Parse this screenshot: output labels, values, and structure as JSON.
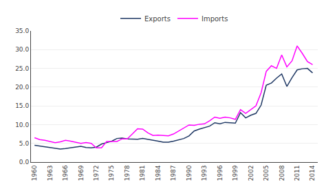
{
  "chart_data": {
    "type": "line",
    "x": [
      1960,
      1961,
      1962,
      1963,
      1964,
      1965,
      1966,
      1967,
      1968,
      1969,
      1970,
      1971,
      1972,
      1973,
      1974,
      1975,
      1976,
      1977,
      1978,
      1979,
      1980,
      1981,
      1982,
      1983,
      1984,
      1985,
      1986,
      1987,
      1988,
      1989,
      1990,
      1991,
      1992,
      1993,
      1994,
      1995,
      1996,
      1997,
      1998,
      1999,
      2000,
      2001,
      2002,
      2003,
      2004,
      2005,
      2006,
      2007,
      2008,
      2009,
      2010,
      2011,
      2012,
      2013,
      2014
    ],
    "series": [
      {
        "name": "Exports",
        "color": "#1F3864",
        "values": [
          4.5,
          4.3,
          4.1,
          3.8,
          3.6,
          3.5,
          3.6,
          3.8,
          4.0,
          4.2,
          3.9,
          3.8,
          4.0,
          4.8,
          5.2,
          5.6,
          6.3,
          6.4,
          6.2,
          6.2,
          6.1,
          6.3,
          6.1,
          5.8,
          5.6,
          5.3,
          5.3,
          5.6,
          5.9,
          6.3,
          7.0,
          8.3,
          8.8,
          9.2,
          9.6,
          10.5,
          10.2,
          10.6,
          10.5,
          10.4,
          13.2,
          11.8,
          12.5,
          13.0,
          15.2,
          20.5,
          21.1,
          22.4,
          23.5,
          20.2,
          22.5,
          24.6,
          24.9,
          25.0,
          23.8
        ]
      },
      {
        "name": "Imports",
        "color": "#FF00FF",
        "values": [
          6.5,
          6.0,
          5.8,
          5.5,
          5.2,
          5.4,
          5.8,
          5.6,
          5.3,
          5.0,
          5.2,
          5.0,
          3.8,
          3.8,
          5.5,
          5.5,
          5.5,
          6.2,
          6.2,
          7.5,
          8.9,
          8.8,
          7.8,
          7.1,
          7.2,
          7.1,
          7.0,
          7.5,
          8.3,
          9.2,
          9.9,
          9.8,
          10.1,
          10.2,
          11.0,
          12.0,
          11.7,
          12.0,
          11.8,
          11.4,
          14.0,
          13.0,
          14.0,
          15.0,
          18.5,
          24.2,
          25.7,
          25.0,
          28.6,
          25.4,
          27.0,
          31.0,
          29.0,
          26.8,
          26.0
        ]
      }
    ],
    "xlim": [
      1959.3,
      2015.0
    ],
    "xticks": [
      1960,
      1963,
      1966,
      1969,
      1972,
      1975,
      1978,
      1981,
      1984,
      1987,
      1990,
      1993,
      1996,
      1999,
      2002,
      2005,
      2008,
      2011,
      2014
    ],
    "ylim": [
      0.0,
      35.0
    ],
    "yticks": [
      {
        "value": 0.0,
        "label": "0.0"
      },
      {
        "value": 5.0,
        "label": "5.0"
      },
      {
        "value": 10.0,
        "label": "10.0"
      },
      {
        "value": 15.0,
        "label": "15.0"
      },
      {
        "value": 20.0,
        "label": "20.0"
      },
      {
        "value": 25.0,
        "label": "25.0"
      },
      {
        "value": 30.0,
        "label": "30.0"
      },
      {
        "value": 35.0,
        "label": "35.0"
      }
    ],
    "grid": "y",
    "legend": "top"
  }
}
